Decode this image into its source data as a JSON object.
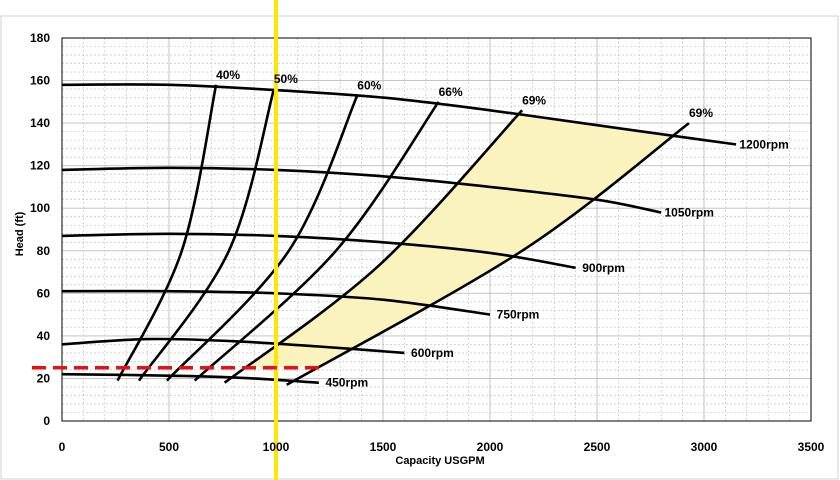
{
  "chart_data": {
    "type": "line",
    "title": "",
    "xlabel": "Capacity USGPM",
    "ylabel": "Head (ft)",
    "xlim": [
      0,
      3500
    ],
    "ylim": [
      0,
      180
    ],
    "xticks": [
      0,
      500,
      1000,
      1500,
      2000,
      2500,
      3000,
      3500
    ],
    "yticks": [
      0,
      20,
      40,
      60,
      80,
      100,
      120,
      140,
      160,
      180
    ],
    "grid": true,
    "speed_curves": [
      {
        "label": "1200rpm",
        "x": [
          0,
          500,
          1000,
          1500,
          2000,
          2500,
          3000,
          3150
        ],
        "y": [
          158,
          158,
          155.5,
          152,
          146,
          139,
          132,
          130
        ]
      },
      {
        "label": "1050rpm",
        "x": [
          0,
          500,
          1000,
          1500,
          2000,
          2500,
          2800
        ],
        "y": [
          118,
          119,
          118,
          115,
          110,
          104,
          98
        ]
      },
      {
        "label": "900rpm",
        "x": [
          0,
          500,
          1000,
          1500,
          2000,
          2400
        ],
        "y": [
          87,
          88,
          87,
          84,
          79,
          72
        ]
      },
      {
        "label": "750rpm",
        "x": [
          0,
          500,
          1000,
          1500,
          2000
        ],
        "y": [
          61,
          61,
          60,
          57,
          50
        ]
      },
      {
        "label": "600rpm",
        "x": [
          0,
          400,
          800,
          1200,
          1600
        ],
        "y": [
          36,
          38.5,
          37.5,
          35,
          32
        ]
      },
      {
        "label": "450rpm",
        "x": [
          0,
          400,
          800,
          1200
        ],
        "y": [
          22,
          21.5,
          20.5,
          18
        ]
      }
    ],
    "efficiency_curves": [
      {
        "label": "40%",
        "x": [
          260,
          560,
          720
        ],
        "y": [
          19,
          80,
          158
        ]
      },
      {
        "label": "50%",
        "x": [
          360,
          780,
          990
        ],
        "y": [
          19,
          80,
          156
        ]
      },
      {
        "label": "60%",
        "x": [
          490,
          1060,
          1380
        ],
        "y": [
          19,
          80,
          153
        ]
      },
      {
        "label": "66%",
        "x": [
          620,
          1280,
          1760
        ],
        "y": [
          19,
          80,
          150
        ]
      },
      {
        "label": "69%",
        "x": [
          760,
          1480,
          2150
        ],
        "y": [
          18,
          73,
          146
        ]
      },
      {
        "label": "69%",
        "x": [
          1050,
          2150,
          2930
        ],
        "y": [
          17,
          80,
          140
        ]
      }
    ],
    "shaded_region": {
      "description": "",
      "color": "#fbf3bd"
    },
    "reference_lines": [
      {
        "type": "vertical",
        "x": 1000,
        "color": "#ffe600"
      },
      {
        "type": "horizontal",
        "y": 25,
        "x_range": [
          0,
          1200
        ],
        "color": "#e81010",
        "style": "dashed"
      }
    ],
    "colors": {
      "curves": "#000000",
      "grid": "#bdbdbd",
      "operating_range_fill": "#fbf3bd",
      "vertical_line": "#ffe600",
      "dashed_line": "#e81010"
    }
  }
}
